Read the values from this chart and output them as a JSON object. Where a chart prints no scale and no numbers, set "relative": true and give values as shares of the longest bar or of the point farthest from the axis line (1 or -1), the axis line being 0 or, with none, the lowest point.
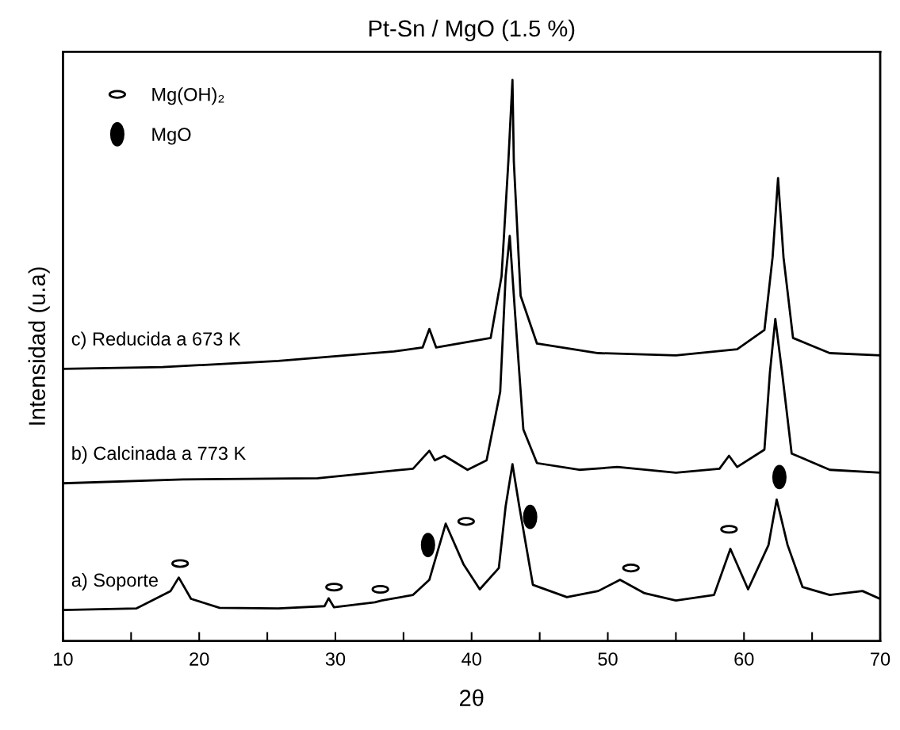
{
  "chart_data": {
    "type": "line",
    "title": "Pt-Sn / MgO (1.5 %)",
    "xlabel": "2θ",
    "ylabel": "Intensidad (u.a)",
    "relative": true,
    "xlim": [
      10,
      70
    ],
    "xticks": [
      10,
      {
        "value": 15,
        "label": null
      },
      20,
      {
        "value": 25,
        "label": null
      },
      30,
      {
        "value": 35,
        "label": null
      },
      40,
      {
        "value": 45,
        "label": null
      },
      50,
      {
        "value": 55,
        "label": null
      },
      60,
      {
        "value": 65,
        "label": null
      },
      70
    ],
    "tick_labels": "x",
    "grid": false,
    "legend": "top left",
    "marker": "none",
    "line_style": "solid",
    "series": [
      {
        "name": "a) Soporte",
        "color": "#000000",
        "x": [
          10,
          15.4,
          17.9,
          18.5,
          19.4,
          21.5,
          25.8,
          29.2,
          29.5,
          29.9,
          32.9,
          33.4,
          35.7,
          36.9,
          38.1,
          39.4,
          40.6,
          42.0,
          42.5,
          43.0,
          43.5,
          44.5,
          47.0,
          49.3,
          50.9,
          52.7,
          55.0,
          57.8,
          59.0,
          60.3,
          61.8,
          62.4,
          63.2,
          64.3,
          66.3,
          68.7,
          70
        ],
        "values": [
          0.055,
          0.058,
          0.089,
          0.113,
          0.075,
          0.059,
          0.058,
          0.062,
          0.076,
          0.06,
          0.069,
          0.072,
          0.082,
          0.109,
          0.209,
          0.137,
          0.092,
          0.13,
          0.24,
          0.315,
          0.24,
          0.1,
          0.078,
          0.089,
          0.109,
          0.085,
          0.072,
          0.082,
          0.164,
          0.092,
          0.171,
          0.252,
          0.171,
          0.096,
          0.082,
          0.089,
          0.075
        ]
      },
      {
        "name": "b) Calcinada a 773 K",
        "color": "#000000",
        "x": [
          10,
          18.8,
          28.7,
          35.7,
          36.9,
          37.3,
          38.0,
          39.7,
          41.1,
          42.1,
          42.5,
          42.8,
          43.2,
          43.8,
          44.8,
          47.9,
          50.7,
          55.0,
          58.2,
          58.9,
          59.5,
          61.5,
          61.9,
          62.3,
          62.8,
          63.5,
          66.3,
          70
        ],
        "values": [
          0.281,
          0.288,
          0.29,
          0.307,
          0.339,
          0.322,
          0.33,
          0.305,
          0.322,
          0.444,
          0.65,
          0.722,
          0.581,
          0.377,
          0.317,
          0.305,
          0.31,
          0.3,
          0.307,
          0.33,
          0.31,
          0.341,
          0.478,
          0.574,
          0.478,
          0.334,
          0.305,
          0.3
        ]
      },
      {
        "name": "c) Reducida a 673 K",
        "color": "#000000",
        "x": [
          10,
          17.3,
          25.8,
          34.3,
          36.4,
          36.9,
          37.4,
          41.4,
          42.2,
          42.7,
          43.0,
          43.1,
          43.6,
          44.8,
          49.3,
          55.0,
          59.5,
          61.5,
          62.1,
          62.5,
          62.9,
          63.6,
          66.3,
          70
        ],
        "values": [
          0.485,
          0.488,
          0.499,
          0.516,
          0.523,
          0.556,
          0.523,
          0.54,
          0.65,
          0.855,
          1.0,
          0.855,
          0.615,
          0.53,
          0.513,
          0.509,
          0.52,
          0.554,
          0.684,
          0.825,
          0.684,
          0.54,
          0.513,
          0.509
        ]
      },
      {
        "name": "Mg(OH)₂",
        "type": "scatter",
        "color": "#ffffff",
        "marker": "circle",
        "x": [
          18.6,
          29.9,
          33.3,
          39.6,
          51.7,
          58.9
        ],
        "values": [
          0.138,
          0.096,
          0.092,
          0.213,
          0.13,
          0.199
        ]
      },
      {
        "name": "MgO",
        "type": "scatter",
        "color": "#000000",
        "marker": "circle",
        "x": [
          36.8,
          44.3,
          62.6
        ],
        "values": [
          0.171,
          0.221,
          0.292
        ]
      }
    ]
  }
}
